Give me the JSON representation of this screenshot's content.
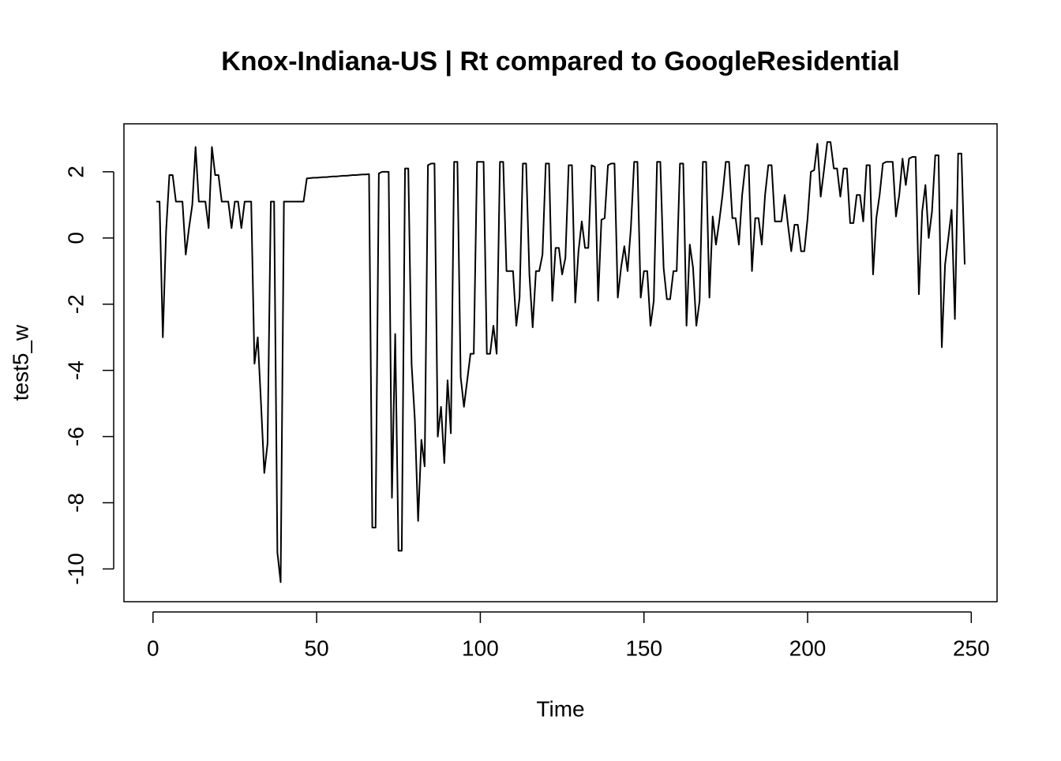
{
  "chart_data": {
    "type": "line",
    "title": "Knox-Indiana-US | Rt compared to GoogleResidential",
    "x_label": "Time",
    "y_label": "test5_w",
    "color": "#000000",
    "xlim": [
      -8.88,
      257.88
    ],
    "ylim": [
      -10.99,
      3.45
    ],
    "xticks": [
      0,
      50,
      100,
      150,
      200,
      250
    ],
    "yticks": [
      -10,
      -8,
      -6,
      -4,
      -2,
      0,
      2
    ],
    "series": [
      {
        "name": "test5_w",
        "color": "#000000",
        "values": [
          1.1,
          1.1,
          -3.0,
          0.2,
          1.9,
          1.9,
          1.1,
          1.1,
          1.1,
          -0.5,
          0.3,
          1.0,
          2.75,
          1.1,
          1.1,
          1.1,
          0.3,
          2.75,
          1.9,
          1.9,
          1.1,
          1.1,
          1.1,
          0.3,
          1.1,
          1.1,
          0.3,
          1.1,
          1.1,
          1.1,
          -3.8,
          -3.0,
          -5.0,
          -7.1,
          -6.2,
          1.1,
          1.1,
          -9.5,
          -10.4,
          1.1,
          1.1,
          1.1,
          1.1,
          1.1,
          1.1,
          1.1,
          1.8,
          1.81,
          1.82,
          1.82,
          1.83,
          1.84,
          1.84,
          1.85,
          1.86,
          1.86,
          1.87,
          1.88,
          1.88,
          1.89,
          1.9,
          1.9,
          1.91,
          1.92,
          1.92,
          1.93,
          -8.75,
          -8.75,
          1.95,
          2.0,
          2.0,
          2.0,
          -7.85,
          -2.9,
          -9.45,
          -9.45,
          2.1,
          2.1,
          -3.8,
          -5.5,
          -8.55,
          -6.1,
          -6.9,
          2.2,
          2.25,
          2.25,
          -6.0,
          -5.1,
          -6.8,
          -4.3,
          -5.9,
          2.3,
          2.3,
          -4.2,
          -5.1,
          -4.3,
          -3.5,
          -3.5,
          2.3,
          2.3,
          2.3,
          -3.5,
          -3.5,
          -2.65,
          -3.5,
          2.3,
          2.3,
          -1.0,
          -1.0,
          -1.0,
          -2.65,
          -1.8,
          2.25,
          2.25,
          -1.1,
          -2.7,
          -1.0,
          -1.0,
          -0.5,
          2.25,
          2.25,
          -1.9,
          -0.3,
          -0.3,
          -1.1,
          -0.6,
          2.2,
          2.2,
          -1.95,
          -0.4,
          0.5,
          -0.3,
          -0.3,
          2.2,
          2.15,
          -1.9,
          0.55,
          0.6,
          2.2,
          2.25,
          2.25,
          -1.8,
          -0.9,
          -0.25,
          -1.0,
          0.3,
          2.3,
          2.3,
          -1.8,
          -1.0,
          -1.0,
          -2.65,
          -1.9,
          2.3,
          2.3,
          -0.9,
          -1.85,
          -1.85,
          -1.0,
          -1.0,
          2.25,
          2.25,
          -2.65,
          -0.2,
          -0.9,
          -2.65,
          -1.9,
          2.3,
          2.3,
          -1.8,
          0.65,
          -0.2,
          0.5,
          1.3,
          2.3,
          2.3,
          0.6,
          0.6,
          -0.2,
          1.3,
          2.2,
          2.2,
          -1.0,
          0.6,
          0.6,
          -0.2,
          1.3,
          2.2,
          2.2,
          0.5,
          0.5,
          0.5,
          1.3,
          0.4,
          -0.4,
          0.4,
          0.4,
          -0.4,
          -0.4,
          0.6,
          2.0,
          2.05,
          2.85,
          1.25,
          2.05,
          2.9,
          2.9,
          2.1,
          2.1,
          1.25,
          2.1,
          2.1,
          0.45,
          0.45,
          1.3,
          1.3,
          0.5,
          2.2,
          2.2,
          -1.1,
          0.6,
          1.3,
          2.25,
          2.3,
          2.3,
          2.3,
          0.65,
          1.3,
          2.4,
          1.6,
          2.4,
          2.45,
          2.45,
          -1.7,
          0.8,
          1.6,
          0.0,
          0.8,
          2.5,
          2.5,
          -3.3,
          -0.8,
          0.0,
          0.85,
          -2.45,
          2.55,
          2.55,
          -0.8
        ]
      }
    ]
  }
}
